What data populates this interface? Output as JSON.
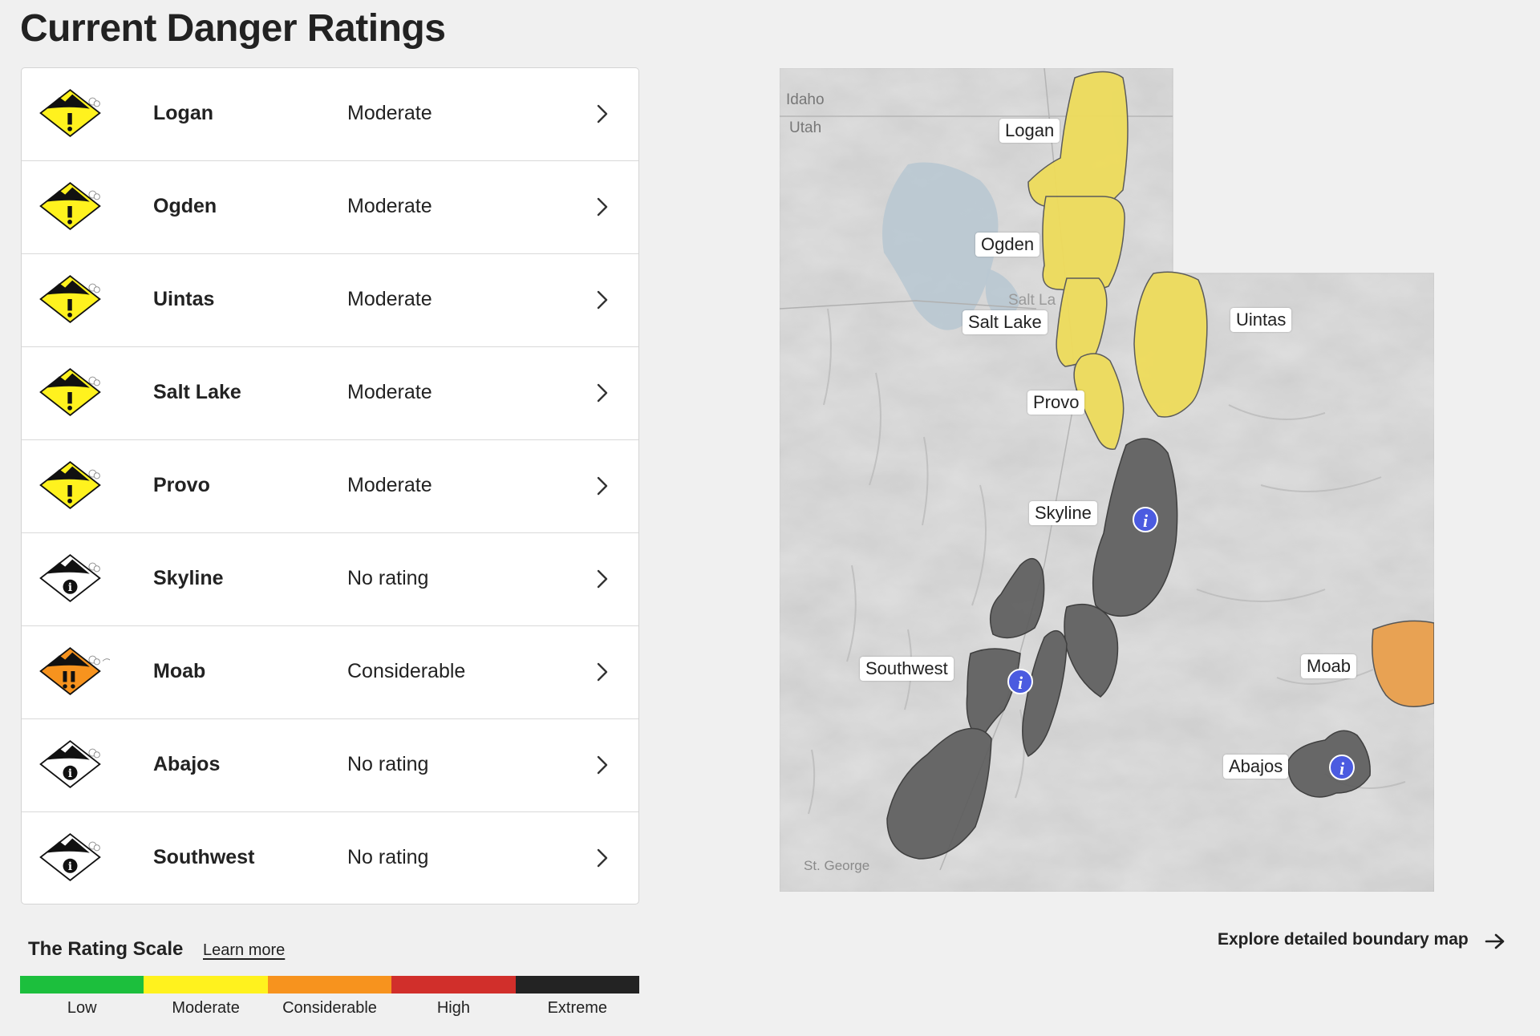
{
  "page": {
    "title": "Current Danger Ratings"
  },
  "ratings": [
    {
      "region": "Logan",
      "rating": "Moderate",
      "level": "moderate"
    },
    {
      "region": "Ogden",
      "rating": "Moderate",
      "level": "moderate"
    },
    {
      "region": "Uintas",
      "rating": "Moderate",
      "level": "moderate"
    },
    {
      "region": "Salt Lake",
      "rating": "Moderate",
      "level": "moderate"
    },
    {
      "region": "Provo",
      "rating": "Moderate",
      "level": "moderate"
    },
    {
      "region": "Skyline",
      "rating": "No rating",
      "level": "none"
    },
    {
      "region": "Moab",
      "rating": "Considerable",
      "level": "considerable"
    },
    {
      "region": "Abajos",
      "rating": "No rating",
      "level": "none"
    },
    {
      "region": "Southwest",
      "rating": "No rating",
      "level": "none"
    }
  ],
  "icons": {
    "moderate": "danger-moderate-icon",
    "considerable": "danger-considerable-icon",
    "none": "no-rating-info-icon",
    "row_action": "chevron-right-icon",
    "explore": "arrow-right-icon"
  },
  "scale": {
    "title": "The Rating Scale",
    "learn_more": "Learn more",
    "levels": [
      {
        "label": "Low",
        "color": "#1cbf3d"
      },
      {
        "label": "Moderate",
        "color": "#fff21e"
      },
      {
        "label": "Considerable",
        "color": "#f7931e"
      },
      {
        "label": "High",
        "color": "#d12f2b"
      },
      {
        "label": "Extreme",
        "color": "#232323"
      }
    ]
  },
  "map": {
    "state_labels": {
      "idaho": "Idaho",
      "utah": "Utah"
    },
    "faint_labels": {
      "st_george": "St. George",
      "salt_lake_city": "Salt La"
    },
    "region_labels": {
      "logan": "Logan",
      "ogden": "Ogden",
      "salt_lake": "Salt Lake",
      "provo": "Provo",
      "uintas": "Uintas",
      "skyline": "Skyline",
      "southwest": "Southwest",
      "moab": "Moab",
      "abajos": "Abajos"
    },
    "colors": {
      "moderate": "#eedc5b",
      "considerable": "#e8a253",
      "none": "#5a5a5a"
    }
  },
  "explore": {
    "label": "Explore detailed boundary map"
  }
}
